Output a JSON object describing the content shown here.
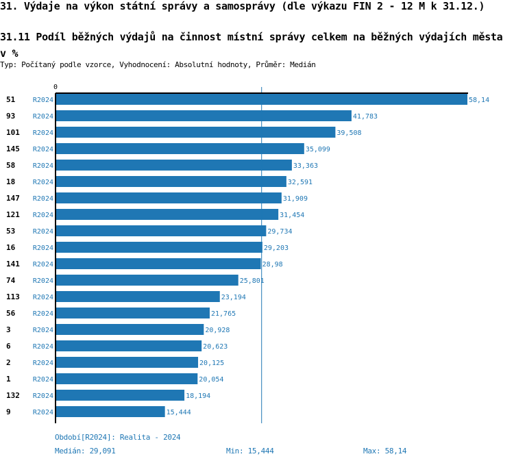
{
  "heading": "31. Výdaje na výkon státní správy a samosprávy (dle výkazu FIN 2 - 12 M k 31.12.)",
  "chart_data": {
    "type": "bar",
    "orientation": "horizontal",
    "title": "31.11 Podíl běžných výdajů na činnost místní správy celkem na běžných výdajích města v %",
    "subtitle": "Typ: Počítaný podle vzorce, Vyhodnocení: Absolutní hodnoty, Průměr: Medián",
    "axis_zero_label": "0",
    "categories": [
      "51",
      "93",
      "101",
      "145",
      "58",
      "18",
      "147",
      "121",
      "53",
      "16",
      "141",
      "74",
      "113",
      "56",
      "3",
      "6",
      "2",
      "1",
      "132",
      "9"
    ],
    "series_label": "R2024",
    "values": [
      58.14,
      41.783,
      39.508,
      35.099,
      33.363,
      32.591,
      31.909,
      31.454,
      29.734,
      29.203,
      28.98,
      25.801,
      23.194,
      21.765,
      20.928,
      20.623,
      20.125,
      20.054,
      18.194,
      15.444
    ],
    "value_labels": [
      "58,14",
      "41,783",
      "39,508",
      "35,099",
      "33,363",
      "32,591",
      "31,909",
      "31,454",
      "29,734",
      "29,203",
      "28,98",
      "25,801",
      "23,194",
      "21,765",
      "20,928",
      "20,623",
      "20,125",
      "20,054",
      "18,194",
      "15,444"
    ],
    "median": 29.091,
    "xlim": [
      0,
      58.14
    ],
    "bar_color": "#1f77b4"
  },
  "footer": {
    "period": "Období[R2024]: Realita - 2024",
    "median": "Medián: 29,091",
    "min": "Min: 15,444",
    "max": "Max: 58,14"
  }
}
